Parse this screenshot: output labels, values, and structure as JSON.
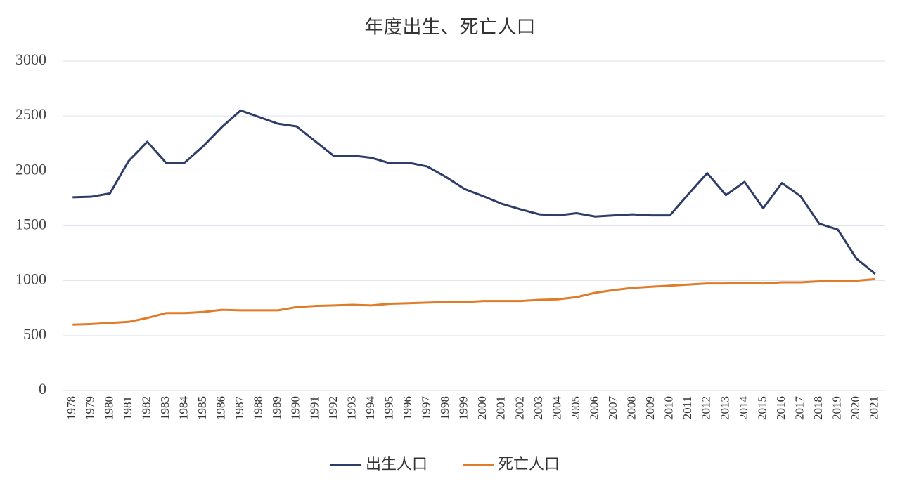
{
  "chart_data": {
    "type": "line",
    "title": "年度出生、死亡人口",
    "categories": [
      "1978",
      "1979",
      "1980",
      "1981",
      "1982",
      "1983",
      "1984",
      "1985",
      "1986",
      "1987",
      "1988",
      "1989",
      "1990",
      "1991",
      "1992",
      "1993",
      "1994",
      "1995",
      "1996",
      "1997",
      "1998",
      "1999",
      "2000",
      "2001",
      "2002",
      "2003",
      "2004",
      "2005",
      "2006",
      "2007",
      "2008",
      "2009",
      "2010",
      "2011",
      "2012",
      "2013",
      "2014",
      "2015",
      "2016",
      "2017",
      "2018",
      "2019",
      "2020",
      "2021"
    ],
    "series": [
      {
        "name": "出生人口",
        "color": "#2e3c68",
        "values": [
          1760,
          1765,
          1795,
          2090,
          2265,
          2075,
          2075,
          2225,
          2400,
          2550,
          2490,
          2430,
          2405,
          2270,
          2135,
          2140,
          2120,
          2070,
          2075,
          2040,
          1945,
          1835,
          1770,
          1700,
          1650,
          1605,
          1595,
          1615,
          1585,
          1595,
          1605,
          1595,
          1595,
          1790,
          1980,
          1780,
          1900,
          1660,
          1890,
          1770,
          1520,
          1465,
          1200,
          1062
        ]
      },
      {
        "name": "死亡人口",
        "color": "#e07b2a",
        "values": [
          600,
          605,
          615,
          625,
          660,
          705,
          705,
          715,
          735,
          730,
          730,
          730,
          760,
          770,
          775,
          780,
          775,
          790,
          795,
          800,
          805,
          805,
          815,
          815,
          815,
          825,
          830,
          850,
          890,
          915,
          935,
          945,
          955,
          965,
          975,
          975,
          980,
          975,
          985,
          985,
          995,
          1000,
          1000,
          1015
        ]
      }
    ],
    "ylim": [
      0,
      3000
    ],
    "yticks": [
      0,
      500,
      1000,
      1500,
      2000,
      2500,
      3000
    ],
    "grid": true,
    "legend": "bottom"
  }
}
